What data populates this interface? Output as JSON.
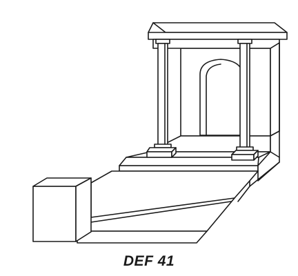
{
  "caption": "DEF 41"
}
